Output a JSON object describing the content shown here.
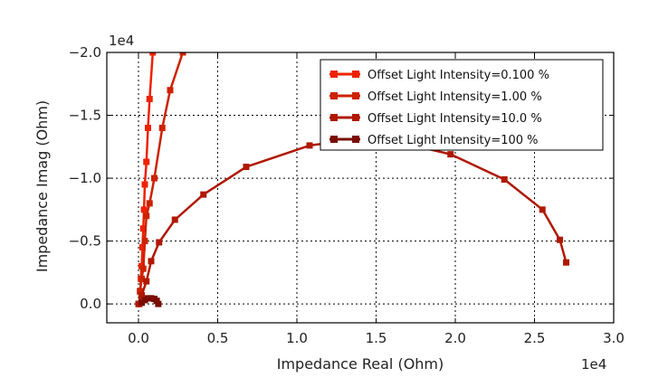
{
  "chart_data": {
    "type": "line",
    "title": "",
    "xlabel": "Impedance Real (Ohm)",
    "ylabel": "Impedance Imag (Ohm)",
    "x_scale_label": "1e4",
    "y_scale_label": "1e4",
    "xlim": [
      -0.2,
      3.0
    ],
    "ylim": [
      0.15,
      -2.0
    ],
    "xticks": [
      0.0,
      0.5,
      1.0,
      1.5,
      2.0,
      2.5,
      3.0
    ],
    "xtick_labels": [
      "0.0",
      "0.5",
      "1.0",
      "1.5",
      "2.0",
      "2.5",
      "3.0"
    ],
    "yticks": [
      -2.0,
      -1.5,
      -1.0,
      -0.5,
      0.0
    ],
    "ytick_labels": [
      "−2.0",
      "−1.5",
      "−1.0",
      "−0.5",
      "0.0"
    ],
    "grid": true,
    "legend_position": "top-right",
    "series": [
      {
        "name": "Offset Light Intensity=0.100 %",
        "color": "#ee2200",
        "x": [
          0.005,
          0.01,
          0.015,
          0.02,
          0.025,
          0.03,
          0.035,
          0.04,
          0.05,
          0.06,
          0.07,
          0.09
        ],
        "y": [
          0.0,
          -0.1,
          -0.2,
          -0.3,
          -0.45,
          -0.6,
          -0.75,
          -0.95,
          -1.13,
          -1.4,
          -1.63,
          -2.0
        ]
      },
      {
        "name": "Offset Light Intensity=1.00 %",
        "color": "#cc2200",
        "x": [
          0.005,
          0.01,
          0.02,
          0.03,
          0.04,
          0.05,
          0.07,
          0.1,
          0.15,
          0.2,
          0.28
        ],
        "y": [
          0.0,
          -0.1,
          -0.2,
          -0.28,
          -0.5,
          -0.7,
          -0.8,
          -1.0,
          -1.4,
          -1.7,
          -2.0
        ]
      },
      {
        "name": "Offset Light Intensity=10.0 %",
        "color": "#b01800",
        "x": [
          0.0,
          0.02,
          0.05,
          0.08,
          0.13,
          0.23,
          0.41,
          0.68,
          1.08,
          1.5,
          1.97,
          2.31,
          2.55,
          2.66,
          2.7
        ],
        "y": [
          0.0,
          -0.07,
          -0.18,
          -0.34,
          -0.49,
          -0.67,
          -0.87,
          -1.09,
          -1.26,
          -1.33,
          -1.19,
          -0.99,
          -0.75,
          -0.51,
          -0.33
        ]
      },
      {
        "name": "Offset Light Intensity=100 %",
        "color": "#7a0d00",
        "x": [
          0.02,
          0.04,
          0.06,
          0.08,
          0.1,
          0.115,
          0.125
        ],
        "y": [
          -0.01,
          -0.03,
          -0.045,
          -0.045,
          -0.04,
          -0.025,
          0.0
        ]
      }
    ]
  }
}
